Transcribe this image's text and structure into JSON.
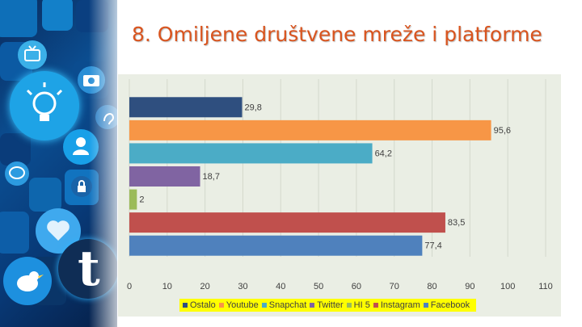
{
  "slide": {
    "title": "8. Omiljene društvene mreže i platforme"
  },
  "left_panel": {
    "icons": [
      "tv-icon",
      "lightbulb-icon",
      "camera-icon",
      "ear-icon",
      "person-icon",
      "chat-icon",
      "lock-icon",
      "tumblr-icon",
      "bird-icon",
      "heart-icon"
    ],
    "tumblr_letter": "t"
  },
  "chart_data": {
    "type": "bar",
    "orientation": "horizontal",
    "title": "",
    "xlabel": "",
    "ylabel": "",
    "xlim": [
      0,
      110
    ],
    "x_ticks": [
      "0",
      "10",
      "20",
      "30",
      "40",
      "50",
      "60",
      "70",
      "80",
      "90",
      "100",
      "110"
    ],
    "grid": true,
    "legend_position": "bottom",
    "series": [
      {
        "name": "Ostalo",
        "value": 29.8,
        "label": "29,8",
        "color": "#2f4f7f"
      },
      {
        "name": "Youtube",
        "value": 95.6,
        "label": "95,6",
        "color": "#f79646"
      },
      {
        "name": "Snapchat",
        "value": 64.2,
        "label": "64,2",
        "color": "#4bacc6"
      },
      {
        "name": "Twitter",
        "value": 18.7,
        "label": "18,7",
        "color": "#8064a2"
      },
      {
        "name": "HI 5",
        "value": 2,
        "label": "2",
        "color": "#9bbb59"
      },
      {
        "name": "Instagram",
        "value": 83.5,
        "label": "83,5",
        "color": "#c0504d"
      },
      {
        "name": "Facebook",
        "value": 77.4,
        "label": "77,4",
        "color": "#4f81bd"
      }
    ]
  }
}
